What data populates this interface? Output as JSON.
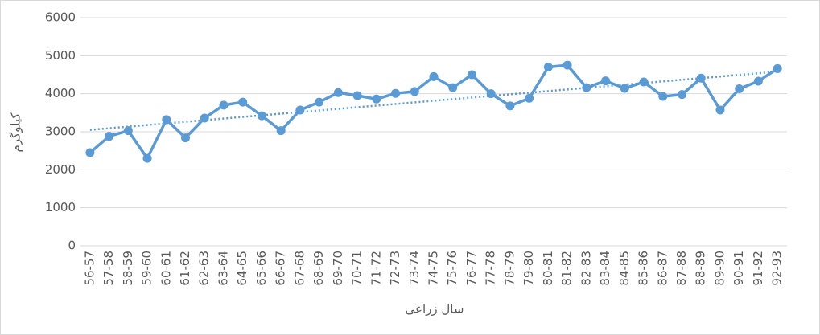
{
  "chart_data": {
    "type": "line",
    "x_label": "سال زراعی",
    "y_label": "کیلوگرم",
    "categories": [
      "56-57",
      "57-58",
      "58-59",
      "59-60",
      "60-61",
      "61-62",
      "62-63",
      "63-64",
      "64-65",
      "65-66",
      "66-67",
      "67-68",
      "68-69",
      "69-70",
      "70-71",
      "71-72",
      "72-73",
      "73-74",
      "74-75",
      "75-76",
      "76-77",
      "77-78",
      "78-79",
      "79-80",
      "80-81",
      "81-82",
      "82-83",
      "83-84",
      "84-85",
      "85-86",
      "86-87",
      "87-88",
      "88-89",
      "89-90",
      "90-91",
      "91-92",
      "92-93"
    ],
    "series": [
      {
        "color": "#5b9bd5",
        "values": [
          2450,
          2880,
          3030,
          2300,
          3320,
          2840,
          3360,
          3700,
          3780,
          3420,
          3030,
          3570,
          3780,
          4030,
          3950,
          3860,
          4010,
          4060,
          4450,
          4160,
          4500,
          4000,
          3680,
          3880,
          4700,
          4750,
          4160,
          4340,
          4140,
          4310,
          3930,
          3980,
          4410,
          3570,
          4130,
          4330,
          4660
        ]
      }
    ],
    "trendline": {
      "color": "#5b9bd5",
      "values": [
        3050,
        4580
      ]
    },
    "ylim": [
      0,
      6000
    ],
    "yticks": [
      0,
      1000,
      2000,
      3000,
      4000,
      5000,
      6000
    ],
    "grid": true
  }
}
